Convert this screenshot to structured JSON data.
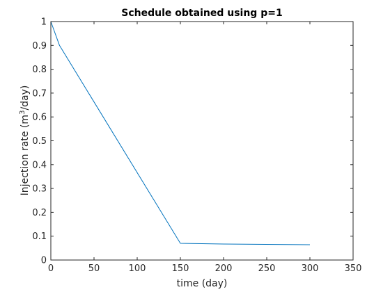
{
  "chart_data": {
    "type": "line",
    "title": "Schedule obtained using p=1",
    "xlabel": "time (day)",
    "ylabel_prefix": "Injection rate (m",
    "ylabel_sup": "3",
    "ylabel_suffix": "/day)",
    "xlim": [
      0,
      350
    ],
    "ylim": [
      0,
      1
    ],
    "xticks": [
      0,
      50,
      100,
      150,
      200,
      250,
      300,
      350
    ],
    "yticks": [
      0,
      0.1,
      0.2,
      0.3,
      0.4,
      0.5,
      0.6,
      0.7,
      0.8,
      0.9,
      1
    ],
    "grid": false,
    "series": [
      {
        "color": "#0072bd",
        "x": [
          0,
          10,
          150,
          200,
          300
        ],
        "y": [
          1.0,
          0.9,
          0.07,
          0.067,
          0.064
        ]
      }
    ]
  }
}
